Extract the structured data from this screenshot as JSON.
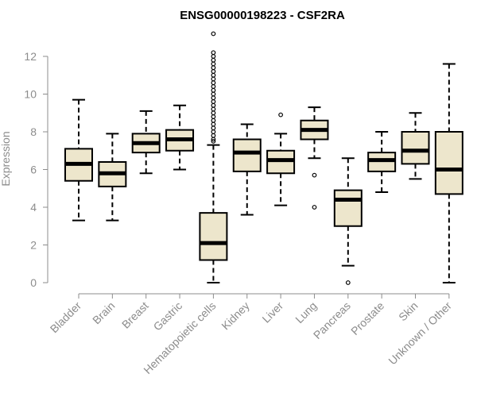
{
  "chart_data": {
    "type": "box",
    "title": "ENSG00000198223 - CSF2RA",
    "ylabel": "Expression",
    "ylim": [
      0,
      12.5
    ],
    "yticks": [
      0,
      2,
      4,
      6,
      8,
      10,
      12
    ],
    "box_color": "#ede6cc",
    "categories": [
      "Bladder",
      "Brain",
      "Breast",
      "Gastric",
      "Hematopoietic cells",
      "Kidney",
      "Liver",
      "Lung",
      "Pancreas",
      "Prostate",
      "Skin",
      "Unknown / Other"
    ],
    "boxes": [
      {
        "min": 3.3,
        "q1": 5.4,
        "median": 6.3,
        "q3": 7.1,
        "max": 9.7,
        "outliers": []
      },
      {
        "min": 3.3,
        "q1": 5.1,
        "median": 5.8,
        "q3": 6.4,
        "max": 7.9,
        "outliers": []
      },
      {
        "min": 5.8,
        "q1": 6.9,
        "median": 7.4,
        "q3": 7.9,
        "max": 9.1,
        "outliers": []
      },
      {
        "min": 6.0,
        "q1": 7.0,
        "median": 7.6,
        "q3": 8.1,
        "max": 9.4,
        "outliers": []
      },
      {
        "min": 0.0,
        "q1": 1.2,
        "median": 2.1,
        "q3": 3.7,
        "max": 7.3,
        "outliers": [
          13.2,
          12.2,
          12.0,
          11.8,
          11.6,
          11.4,
          11.2,
          11.0,
          10.8,
          10.6,
          10.4,
          10.2,
          10.0,
          9.8,
          9.6,
          9.4,
          9.2,
          9.0,
          8.8,
          8.6,
          8.4,
          8.2,
          8.0,
          7.8,
          7.6,
          7.5
        ]
      },
      {
        "min": 3.6,
        "q1": 5.9,
        "median": 6.9,
        "q3": 7.6,
        "max": 8.4,
        "outliers": []
      },
      {
        "min": 4.1,
        "q1": 5.8,
        "median": 6.5,
        "q3": 7.0,
        "max": 7.9,
        "outliers": [
          8.9
        ]
      },
      {
        "min": 6.6,
        "q1": 7.6,
        "median": 8.1,
        "q3": 8.6,
        "max": 9.3,
        "outliers": [
          5.7,
          4.0
        ]
      },
      {
        "min": 0.9,
        "q1": 3.0,
        "median": 4.4,
        "q3": 4.9,
        "max": 6.6,
        "outliers": [
          0.0
        ]
      },
      {
        "min": 4.8,
        "q1": 5.9,
        "median": 6.5,
        "q3": 6.9,
        "max": 8.0,
        "outliers": []
      },
      {
        "min": 5.5,
        "q1": 6.3,
        "median": 7.0,
        "q3": 8.0,
        "max": 9.0,
        "outliers": []
      },
      {
        "min": 0.0,
        "q1": 4.7,
        "median": 6.0,
        "q3": 8.0,
        "max": 11.6,
        "outliers": []
      }
    ]
  }
}
